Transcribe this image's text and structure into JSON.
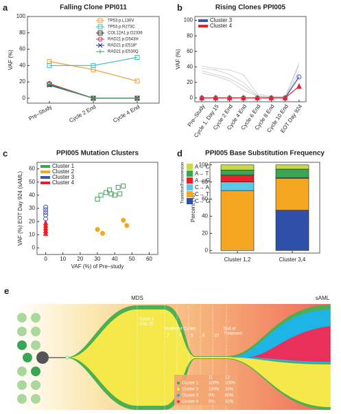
{
  "chart_data": [
    {
      "type": "line",
      "panel_label": "a",
      "title": "Falling Clone PPI011",
      "y_label": "VAF (%)",
      "categories": [
        "Pre–Study",
        "Cycle 2 End",
        "Cycle 4 End"
      ],
      "x_tick_rotation": -30,
      "ylim": [
        -6,
        100
      ],
      "yticks": [
        0,
        20,
        40,
        60,
        80,
        100
      ],
      "grid": false,
      "legend": "upper right",
      "series": [
        {
          "name": "TP53 p.L130V",
          "color": "#f39c3a",
          "marker": "square",
          "filled": false,
          "values": [
            45,
            35,
            21
          ]
        },
        {
          "name": "TP53 p.R273C",
          "color": "#35bdbd",
          "marker": "square",
          "filled": false,
          "values": [
            40,
            40,
            50
          ]
        },
        {
          "name": "COL12A1 p.D2336",
          "color": "#222222",
          "marker": "square",
          "filled": false,
          "values": [
            17,
            0,
            0
          ]
        },
        {
          "name": "RAD21 p.D543H",
          "color": "#e0303a",
          "marker": "circle",
          "filled": false,
          "values": [
            18,
            0,
            0
          ]
        },
        {
          "name": "RAD21 p.E518*",
          "color": "#2c2f8a",
          "marker": "x",
          "filled": false,
          "values": [
            16,
            0,
            0
          ]
        },
        {
          "name": "RAD21 p.E530Q",
          "color": "#3aa655",
          "marker": "plus",
          "filled": false,
          "values": [
            17,
            0,
            0
          ]
        }
      ]
    },
    {
      "type": "line",
      "panel_label": "b",
      "title": "Rising Clones PPI005",
      "y_label": "VAF (%)",
      "categories": [
        "Pre–Study",
        "Cycle 1, Day 15",
        "Cycle 2 End",
        "Cycle 4 End",
        "Cycle 6 End",
        "Cycle 8 End",
        "Cycle 10 End",
        "EOT Day 924"
      ],
      "x_tick_rotation": -55,
      "ylim": [
        -5,
        105
      ],
      "yticks": [
        0,
        20,
        40,
        60,
        80,
        100
      ],
      "grid": false,
      "legend": "upper left",
      "series": [
        {
          "color": "#c8c8c8",
          "values": [
            41,
            38,
            36,
            30,
            5,
            2,
            2,
            42
          ]
        },
        {
          "color": "#c8c8c8",
          "values": [
            38,
            36,
            30,
            20,
            3,
            1,
            1,
            35
          ]
        },
        {
          "color": "#c8c8c8",
          "values": [
            35,
            30,
            25,
            15,
            2,
            1,
            1,
            30
          ]
        },
        {
          "color": "#c8c8c8",
          "values": [
            32,
            28,
            22,
            10,
            2,
            1,
            1,
            45
          ]
        },
        {
          "name": "Cluster 3",
          "color": "#3a55b4",
          "marker": "circle",
          "filled": false,
          "values": [
            0,
            0,
            0,
            0,
            0,
            0,
            0,
            27
          ]
        },
        {
          "name": "Cluster 4",
          "color": "#e8202a",
          "marker": "triangle",
          "filled": true,
          "values": [
            0,
            0,
            0,
            0,
            0,
            0,
            0,
            15
          ]
        }
      ]
    },
    {
      "type": "scatter",
      "panel_label": "c",
      "title": "PPI005 Mutation Clusters",
      "x_label": "VAF (%) of Pre–study",
      "y_label": "VAF (%) EOT Day 924 (sAML)",
      "xlim": [
        -5,
        65
      ],
      "xticks": [
        0,
        10,
        20,
        30,
        40,
        50,
        60
      ],
      "ylim": [
        -5,
        65
      ],
      "yticks": [
        0,
        10,
        20,
        30,
        40,
        50,
        60
      ],
      "grid": false,
      "legend": "upper left",
      "series": [
        {
          "name": "Cluster 1",
          "color": "#3aa655",
          "marker": "square",
          "filled": false,
          "x": [
            30,
            32,
            35,
            37,
            38,
            40,
            42,
            43,
            45
          ],
          "values": [
            37,
            40,
            42,
            44,
            41,
            40,
            46,
            41,
            47
          ]
        },
        {
          "name": "Cluster 2",
          "color": "#f5a623",
          "marker": "circle",
          "filled": true,
          "x": [
            30,
            33,
            45,
            47
          ],
          "values": [
            14,
            11,
            21,
            17
          ]
        },
        {
          "name": "Cluster 3",
          "color": "#3a55b4",
          "marker": "circle",
          "filled": false,
          "x": [
            0,
            0,
            0,
            0,
            0
          ],
          "values": [
            22,
            25,
            27,
            29,
            31
          ]
        },
        {
          "name": "Cluster 4",
          "color": "#e8202a",
          "marker": "triangle",
          "filled": true,
          "x": [
            0,
            0,
            0,
            0,
            0
          ],
          "values": [
            11,
            13,
            15,
            17,
            19
          ]
        }
      ]
    },
    {
      "type": "stacked_bar",
      "panel_label": "d",
      "title": "PPI005 Base Substitution Frequency",
      "y_label": "Percent (%)",
      "categories": [
        "Cluster 1,2",
        "Cluster 3,4"
      ],
      "ylim": [
        -3,
        103
      ],
      "yticks": [
        0,
        20,
        40,
        60,
        80,
        100
      ],
      "grid": false,
      "legend": "outside left",
      "legend_groups": [
        "Transversion",
        "Transition"
      ],
      "series": [
        {
          "name": "C→ G",
          "color": "#2f4fa8",
          "values": [
            0,
            47
          ]
        },
        {
          "name": "C→ T",
          "color": "#f5a623",
          "values": [
            70,
            37
          ]
        },
        {
          "name": "C→ A",
          "color": "#5bc8e8",
          "values": [
            10,
            1
          ]
        },
        {
          "name": "A→ G",
          "color": "#e8202a",
          "values": [
            8,
            0
          ]
        },
        {
          "name": "A→ T",
          "color": "#3aa655",
          "values": [
            6,
            10
          ]
        },
        {
          "name": "A→ C",
          "color": "#c5d94a",
          "values": [
            6,
            5
          ]
        }
      ]
    }
  ],
  "fish_plot": {
    "panel_label": "e",
    "start_label": "MDS",
    "end_label": "sAML",
    "first_cycle": [
      "Cycle 1",
      "Day 15"
    ],
    "cycle_ticks": [
      "2",
      "4",
      "6",
      "8",
      "10"
    ],
    "cycles_caption": "Treatment Cycles",
    "end_of_treatment": [
      "End of",
      "Treatment"
    ],
    "timepoints": [
      "11",
      "12"
    ],
    "table": {
      "rows": [
        [
          "Cluster 1",
          "100%",
          "100%"
        ],
        [
          "Cluster 2",
          "100%",
          "33%"
        ],
        [
          "Cluster 3",
          "0%",
          "60%"
        ],
        [
          "Cluster 4",
          "0%",
          "32%"
        ]
      ]
    }
  }
}
